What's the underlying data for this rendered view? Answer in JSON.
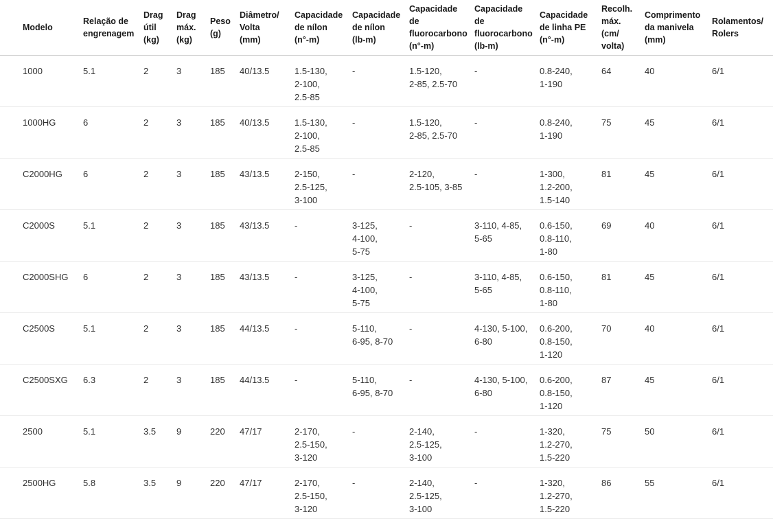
{
  "colors": {
    "background": "#ffffff",
    "header_text": "#1a1a1a",
    "body_text": "#303030",
    "header_divider": "#c8c8c8",
    "row_divider": "#ebebeb"
  },
  "table": {
    "columns": [
      {
        "label": "Modelo"
      },
      {
        "label": "Relação de\nengrenagem"
      },
      {
        "label": "Drag\nútil\n(kg)"
      },
      {
        "label": "Drag\nmáx.\n(kg)"
      },
      {
        "label": "Peso\n(g)"
      },
      {
        "label": "Diâmetro/\nVolta\n(mm)"
      },
      {
        "label": "Capacidade\nde nílon\n(n°-m)"
      },
      {
        "label": "Capacidade\nde nílon\n(lb-m)"
      },
      {
        "label": "Capacidade\nde\nfluorocarbono\n(n°-m)"
      },
      {
        "label": "Capacidade\nde\nfluorocarbono\n(lb-m)"
      },
      {
        "label": "Capacidade\nde linha PE\n(n°-m)"
      },
      {
        "label": "Recolh.\nmáx.\n(cm/\nvolta)"
      },
      {
        "label": "Comprimento\nda manivela\n(mm)"
      },
      {
        "label": "Rolamentos/\nRolers"
      }
    ],
    "rows": [
      {
        "cells": [
          "1000",
          "5.1",
          "2",
          "3",
          "185",
          "40/13.5",
          "1.5-130,\n2-100,\n2.5-85",
          "-",
          "1.5-120,\n2-85, 2.5-70",
          "-",
          "0.8-240,\n1-190",
          "64",
          "40",
          "6/1"
        ]
      },
      {
        "cells": [
          "1000HG",
          "6",
          "2",
          "3",
          "185",
          "40/13.5",
          "1.5-130,\n2-100,\n2.5-85",
          "-",
          "1.5-120,\n2-85, 2.5-70",
          "-",
          "0.8-240,\n1-190",
          "75",
          "45",
          "6/1"
        ]
      },
      {
        "cells": [
          "C2000HG",
          "6",
          "2",
          "3",
          "185",
          "43/13.5",
          "2-150,\n2.5-125,\n3-100",
          "-",
          "2-120,\n2.5-105, 3-85",
          "-",
          "1-300,\n1.2-200,\n1.5-140",
          "81",
          "45",
          "6/1"
        ]
      },
      {
        "cells": [
          "C2000S",
          "5.1",
          "2",
          "3",
          "185",
          "43/13.5",
          "-",
          "3-125,\n4-100,\n5-75",
          "-",
          "3-110, 4-85,\n5-65",
          "0.6-150,\n0.8-110,\n1-80",
          "69",
          "40",
          "6/1"
        ]
      },
      {
        "cells": [
          "C2000SHG",
          "6",
          "2",
          "3",
          "185",
          "43/13.5",
          "-",
          "3-125,\n4-100,\n5-75",
          "-",
          "3-110, 4-85,\n5-65",
          "0.6-150,\n0.8-110,\n1-80",
          "81",
          "45",
          "6/1"
        ]
      },
      {
        "cells": [
          "C2500S",
          "5.1",
          "2",
          "3",
          "185",
          "44/13.5",
          "-",
          "5-110,\n6-95, 8-70",
          "-",
          "4-130, 5-100,\n6-80",
          "0.6-200,\n0.8-150,\n1-120",
          "70",
          "40",
          "6/1"
        ]
      },
      {
        "cells": [
          "C2500SXG",
          "6.3",
          "2",
          "3",
          "185",
          "44/13.5",
          "-",
          "5-110,\n6-95, 8-70",
          "-",
          "4-130, 5-100,\n6-80",
          "0.6-200,\n0.8-150,\n1-120",
          "87",
          "45",
          "6/1"
        ]
      },
      {
        "cells": [
          "2500",
          "5.1",
          "3.5",
          "9",
          "220",
          "47/17",
          "2-170,\n2.5-150,\n3-120",
          "-",
          "2-140,\n2.5-125,\n3-100",
          "-",
          "1-320,\n1.2-270,\n1.5-220",
          "75",
          "50",
          "6/1"
        ]
      },
      {
        "cells": [
          "2500HG",
          "5.8",
          "3.5",
          "9",
          "220",
          "47/17",
          "2-170,\n2.5-150,\n3-120",
          "-",
          "2-140,\n2.5-125,\n3-100",
          "-",
          "1-320,\n1.2-270,\n1.5-220",
          "86",
          "55",
          "6/1"
        ]
      }
    ]
  }
}
